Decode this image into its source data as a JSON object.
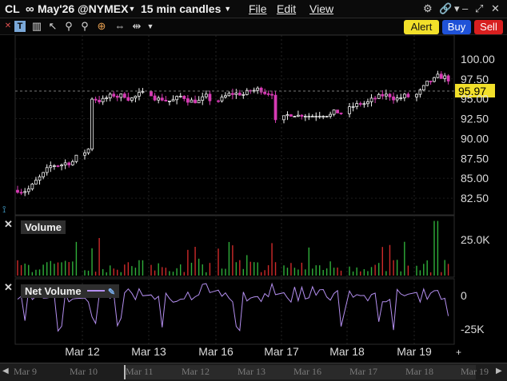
{
  "window": {
    "symbol": "CL",
    "link_glyph": "∞",
    "contract": "May'26 @NYMEX",
    "bar_size": "15 min candles",
    "menus": [
      "File",
      "Edit",
      "View"
    ]
  },
  "toolbar": {
    "alert_label": "Alert",
    "buy_label": "Buy",
    "sell_label": "Sell"
  },
  "price_panel": {
    "last_price_label": "95.97",
    "last_price": 95.97,
    "y_ticks": [
      "100.00",
      "97.50",
      "95.00",
      "92.50",
      "90.00",
      "87.50",
      "85.00",
      "82.50"
    ]
  },
  "volume_panel": {
    "title": "Volume",
    "y_ticks": [
      "25.0K"
    ]
  },
  "net_volume_panel": {
    "title": "Net Volume",
    "y_ticks": [
      "0",
      "-25K"
    ]
  },
  "x_axis": {
    "labels": [
      "Mar 12",
      "Mar 13",
      "Mar 16",
      "Mar 17",
      "Mar 18",
      "Mar 19"
    ]
  },
  "navigator": {
    "dates": [
      "Mar 9",
      "Mar 10",
      "Mar 11",
      "Mar 12",
      "Mar 13",
      "Mar 16",
      "Mar 17",
      "Mar 18",
      "Mar 19"
    ]
  },
  "colors": {
    "up": "#f2f2f2",
    "down": "#d63bb4",
    "volume_up": "#2fae3a",
    "volume_down": "#cf2a2a",
    "net_volume_line": "#b48ff0",
    "last_price_bg": "#f2e02a"
  },
  "chart_data": {
    "type": "candlestick",
    "sessions": [
      "Mar 11",
      "Mar 12",
      "Mar 13",
      "Mar 16",
      "Mar 17",
      "Mar 18",
      "Mar 19"
    ],
    "session_closes_approx": [
      87.5,
      95.5,
      95.0,
      96.2,
      93.2,
      95.3,
      97.6
    ],
    "session_ranges_approx": [
      [
        81.8,
        88.6
      ],
      [
        87.0,
        97.0
      ],
      [
        92.5,
        97.5
      ],
      [
        92.3,
        99.0
      ],
      [
        92.8,
        96.0
      ],
      [
        94.0,
        98.8
      ],
      [
        94.5,
        100.3
      ]
    ],
    "last": 95.97,
    "ylim": [
      80.5,
      102.0
    ],
    "volume_ylim": [
      0,
      40000
    ],
    "net_volume_ylim": [
      -35000,
      10000
    ]
  }
}
